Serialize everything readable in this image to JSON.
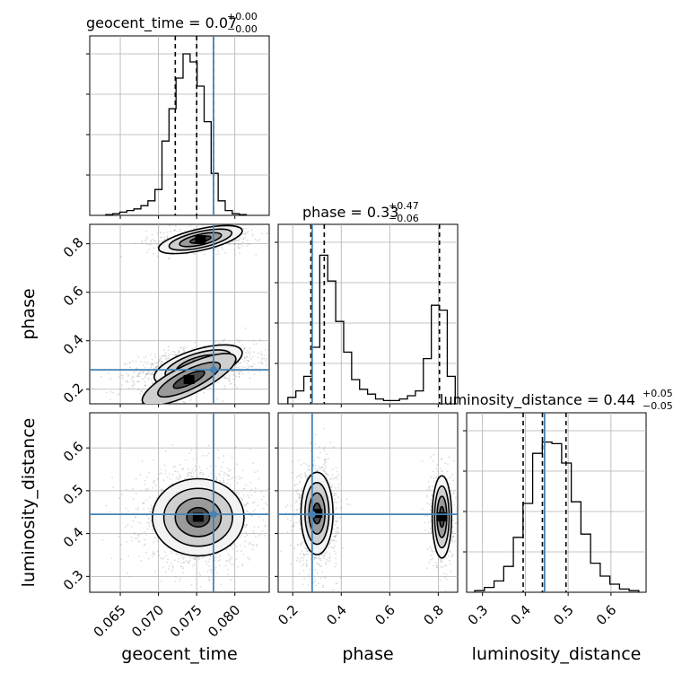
{
  "chart_data": {
    "type": "corner",
    "grid": true,
    "colors": {
      "truth": "#4682b4",
      "contour": "#000000",
      "scatter": "#9a9a9a",
      "hist": "#000000"
    },
    "parameters": [
      {
        "key": "geocent_time",
        "label": "geocent_time",
        "title_main": "geocent_time = 0.07",
        "title_plus": "+0.00",
        "title_minus": "−0.00",
        "range": [
          0.061,
          0.0845
        ],
        "ticks": [
          0.065,
          0.07,
          0.075,
          0.08
        ],
        "tick_labels": [
          "0.065",
          "0.070",
          "0.075",
          "0.080"
        ],
        "truth": 0.0772,
        "quantiles": [
          0.0722,
          0.075,
          0.0772
        ],
        "hist_bins": [
          0.061,
          0.0655
        ],
        "hist_counts": [
          0.005,
          0.01,
          0.02,
          0.03,
          0.04,
          0.06,
          0.09,
          0.16,
          0.46,
          0.66,
          0.85,
          1.0,
          0.95,
          0.8,
          0.58,
          0.26,
          0.09,
          0.03,
          0.01,
          0.005
        ],
        "hist_range": [
          0.0631,
          0.0815
        ]
      },
      {
        "key": "phase",
        "label": "phase",
        "title_main": "phase = 0.33",
        "title_plus": "+0.47",
        "title_minus": "−0.06",
        "range": [
          0.14,
          0.88
        ],
        "ticks": [
          0.2,
          0.4,
          0.6,
          0.8
        ],
        "tick_labels": [
          "0.2",
          "0.4",
          "0.6",
          "0.8"
        ],
        "truth": 0.28,
        "quantiles": [
          0.275,
          0.33,
          0.805
        ],
        "hist_counts": [
          0.04,
          0.08,
          0.17,
          0.35,
          0.92,
          0.76,
          0.51,
          0.32,
          0.15,
          0.09,
          0.06,
          0.03,
          0.02,
          0.02,
          0.03,
          0.05,
          0.08,
          0.28,
          0.61,
          0.58,
          0.17
        ],
        "hist_range": [
          0.18,
          0.87
        ]
      },
      {
        "key": "luminosity_distance",
        "label": "luminosity_distance",
        "title_main": "luminosity_distance = 0.44",
        "title_plus": "+0.05",
        "title_minus": "−0.05",
        "range": [
          0.263,
          0.682
        ],
        "ticks": [
          0.3,
          0.4,
          0.5,
          0.6
        ],
        "tick_labels": [
          "0.3",
          "0.4",
          "0.5",
          "0.6"
        ],
        "truth": 0.445,
        "quantiles": [
          0.395,
          0.44,
          0.495
        ],
        "hist_counts": [
          0.01,
          0.03,
          0.07,
          0.16,
          0.34,
          0.55,
          0.86,
          0.93,
          0.92,
          0.8,
          0.56,
          0.36,
          0.18,
          0.1,
          0.05,
          0.02,
          0.01
        ],
        "hist_range": [
          0.282,
          0.665
        ]
      }
    ],
    "modes_2d": {
      "time_phase": [
        {
          "t": 0.0752,
          "p": 0.3,
          "st": 0.003,
          "sp": 0.032,
          "rho": 0.35,
          "w": 0.72
        },
        {
          "t": 0.074,
          "p": 0.24,
          "st": 0.0045,
          "sp": 0.04,
          "rho": 0.55,
          "w": 0.12
        },
        {
          "t": 0.0755,
          "p": 0.817,
          "st": 0.0028,
          "sp": 0.022,
          "rho": 0.25,
          "w": 0.28
        }
      ],
      "time_dist": [
        {
          "t": 0.0752,
          "d": 0.438,
          "st": 0.003,
          "sd": 0.045,
          "rho": 0.0,
          "w": 1.0
        }
      ],
      "phase_dist": [
        {
          "p": 0.3,
          "d": 0.447,
          "sp": 0.033,
          "sd": 0.048,
          "rho": 0.0,
          "w": 0.7
        },
        {
          "p": 0.815,
          "d": 0.439,
          "sp": 0.02,
          "sd": 0.048,
          "rho": 0.0,
          "w": 0.3
        }
      ]
    }
  }
}
